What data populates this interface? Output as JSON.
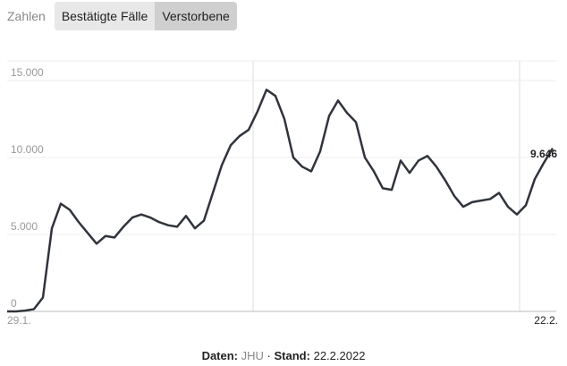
{
  "controls": {
    "label": "Zahlen",
    "buttons": [
      "Bestätigte Fälle",
      "Verstorbene"
    ]
  },
  "chart_data": {
    "type": "line",
    "categories": [
      "29.1.",
      null,
      null,
      null,
      null,
      null,
      null,
      null,
      null,
      null,
      null,
      null,
      null,
      null,
      null,
      null,
      null,
      null,
      null,
      null,
      null,
      null,
      null,
      null,
      null,
      null,
      null,
      null,
      null,
      null,
      null,
      null,
      null,
      null,
      null,
      null,
      null,
      null,
      null,
      null,
      null,
      null,
      null,
      null,
      null,
      null,
      null,
      null,
      null,
      null,
      null,
      null,
      null,
      null,
      null,
      null,
      null,
      null,
      null,
      null,
      null,
      "22.2."
    ],
    "values": [
      0,
      0,
      50,
      150,
      900,
      5400,
      7000,
      6600,
      5800,
      5100,
      4400,
      4900,
      4800,
      5500,
      6100,
      6300,
      6100,
      5800,
      5600,
      5500,
      6200,
      5400,
      5900,
      7700,
      9500,
      10800,
      11400,
      11800,
      13000,
      14400,
      14000,
      12500,
      10000,
      9400,
      9100,
      10400,
      12700,
      13700,
      12900,
      12300,
      10000,
      9100,
      8000,
      7900,
      9800,
      9000,
      9800,
      10100,
      9400,
      8500,
      7500,
      6800,
      7100,
      7200,
      7300,
      7700,
      6800,
      6300,
      6900,
      8600,
      9646,
      10600
    ],
    "value_labels": [
      null,
      null,
      null,
      null,
      null,
      null,
      null,
      null,
      null,
      null,
      null,
      null,
      null,
      null,
      null,
      null,
      null,
      null,
      null,
      null,
      null,
      null,
      null,
      null,
      null,
      null,
      null,
      null,
      null,
      null,
      null,
      null,
      null,
      null,
      null,
      null,
      null,
      null,
      null,
      null,
      null,
      null,
      null,
      null,
      null,
      null,
      null,
      null,
      null,
      null,
      null,
      null,
      null,
      null,
      null,
      null,
      null,
      null,
      null,
      null,
      "9.646",
      null
    ],
    "color": "#30343b",
    "ylim": [
      0,
      16000
    ],
    "yticks": [
      0,
      {
        "value": 5000,
        "label": "5.000"
      },
      {
        "value": 10000,
        "label": "10.000"
      },
      {
        "value": 15000,
        "label": "15.000"
      }
    ],
    "grid": true
  },
  "footer": {
    "source_label": "Daten:",
    "source": "JHU",
    "separator": "·",
    "date_label": "Stand:",
    "date": "22.2.2022"
  }
}
